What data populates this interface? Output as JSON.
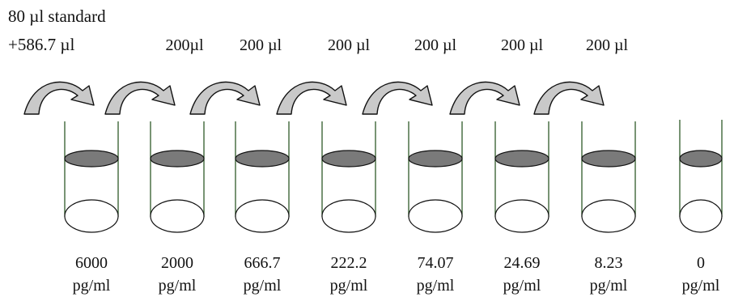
{
  "intro": {
    "line1": "80 µl standard",
    "line2": "+586.7 µl"
  },
  "transfers": [
    {
      "volume": "200µl"
    },
    {
      "volume": "200 µl"
    },
    {
      "volume": "200 µl"
    },
    {
      "volume": "200 µl"
    },
    {
      "volume": "200 µl"
    },
    {
      "volume": "200 µl"
    }
  ],
  "tubes": [
    {
      "conc": "6000",
      "unit": "pg/ml"
    },
    {
      "conc": "2000",
      "unit": "pg/ml"
    },
    {
      "conc": "666.7",
      "unit": "pg/ml"
    },
    {
      "conc": "222.2",
      "unit": "pg/ml"
    },
    {
      "conc": "74.07",
      "unit": "pg/ml"
    },
    {
      "conc": "24.69",
      "unit": "pg/ml"
    },
    {
      "conc": "8.23",
      "unit": "pg/ml"
    },
    {
      "conc": "0",
      "unit": "pg/ml"
    }
  ],
  "colors": {
    "tube_wall": "#2f5a2a",
    "liquid_fill": "#7a7a7a",
    "arrow_fill": "#c9c9c9",
    "outline": "#111111"
  }
}
